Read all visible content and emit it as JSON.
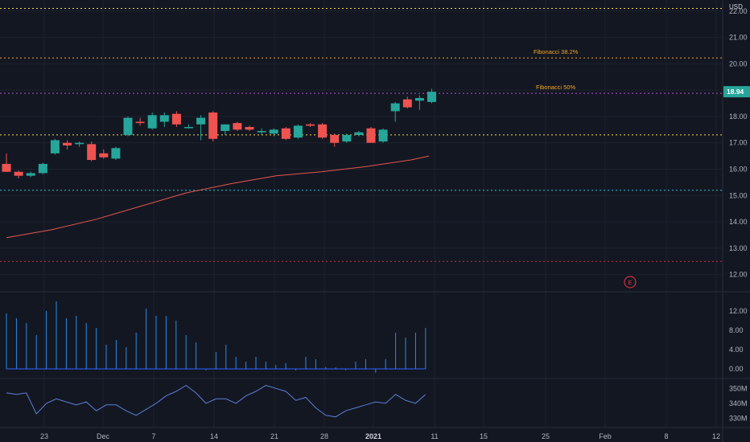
{
  "chart_data": [
    {
      "type": "candlestick",
      "currency": "USD",
      "ylim": [
        11.5,
        22.3
      ],
      "y_ticks": [
        "22.00",
        "21.00",
        "20.00",
        "19.00",
        "18.00",
        "17.00",
        "16.00",
        "15.00",
        "14.00",
        "13.00",
        "12.00"
      ],
      "last_price": "18.94",
      "x_ticks": [
        "23",
        "Dec",
        "7",
        "14",
        "21",
        "28",
        "2021",
        "11",
        "15",
        "25",
        "Feb",
        "8",
        "12"
      ],
      "candles": [
        {
          "o": 16.2,
          "h": 16.6,
          "l": 15.9,
          "c": 15.9
        },
        {
          "o": 15.9,
          "h": 15.95,
          "l": 15.65,
          "c": 15.75
        },
        {
          "o": 15.75,
          "h": 15.9,
          "l": 15.7,
          "c": 15.85
        },
        {
          "o": 15.85,
          "h": 16.25,
          "l": 15.8,
          "c": 16.2
        },
        {
          "o": 16.6,
          "h": 17.15,
          "l": 16.55,
          "c": 17.1
        },
        {
          "o": 17.0,
          "h": 17.1,
          "l": 16.75,
          "c": 16.9
        },
        {
          "o": 16.95,
          "h": 17.05,
          "l": 16.85,
          "c": 17.0
        },
        {
          "o": 16.95,
          "h": 17.05,
          "l": 16.3,
          "c": 16.35
        },
        {
          "o": 16.6,
          "h": 16.75,
          "l": 16.4,
          "c": 16.45
        },
        {
          "o": 16.4,
          "h": 16.85,
          "l": 16.35,
          "c": 16.8
        },
        {
          "o": 17.3,
          "h": 18.0,
          "l": 17.25,
          "c": 17.95
        },
        {
          "o": 17.8,
          "h": 17.95,
          "l": 17.65,
          "c": 17.75
        },
        {
          "o": 17.55,
          "h": 18.15,
          "l": 17.5,
          "c": 18.05
        },
        {
          "o": 17.8,
          "h": 18.15,
          "l": 17.6,
          "c": 18.05
        },
        {
          "o": 18.1,
          "h": 18.2,
          "l": 17.6,
          "c": 17.7
        },
        {
          "o": 17.6,
          "h": 17.7,
          "l": 17.55,
          "c": 17.6
        },
        {
          "o": 17.7,
          "h": 18.05,
          "l": 17.1,
          "c": 17.95
        },
        {
          "o": 18.15,
          "h": 18.2,
          "l": 17.05,
          "c": 17.15
        },
        {
          "o": 17.45,
          "h": 17.7,
          "l": 17.3,
          "c": 17.7
        },
        {
          "o": 17.75,
          "h": 17.8,
          "l": 17.45,
          "c": 17.5
        },
        {
          "o": 17.6,
          "h": 17.65,
          "l": 17.45,
          "c": 17.5
        },
        {
          "o": 17.4,
          "h": 17.55,
          "l": 17.3,
          "c": 17.45
        },
        {
          "o": 17.35,
          "h": 17.55,
          "l": 17.25,
          "c": 17.5
        },
        {
          "o": 17.55,
          "h": 17.6,
          "l": 17.1,
          "c": 17.15
        },
        {
          "o": 17.2,
          "h": 17.7,
          "l": 17.15,
          "c": 17.65
        },
        {
          "o": 17.7,
          "h": 17.75,
          "l": 17.6,
          "c": 17.65
        },
        {
          "o": 17.7,
          "h": 17.75,
          "l": 17.15,
          "c": 17.2
        },
        {
          "o": 17.3,
          "h": 17.35,
          "l": 16.85,
          "c": 17.0
        },
        {
          "o": 17.05,
          "h": 17.35,
          "l": 17.0,
          "c": 17.3
        },
        {
          "o": 17.3,
          "h": 17.45,
          "l": 17.25,
          "c": 17.4
        },
        {
          "o": 17.55,
          "h": 17.6,
          "l": 17.0,
          "c": 17.0
        },
        {
          "o": 17.05,
          "h": 17.55,
          "l": 17.0,
          "c": 17.5
        },
        {
          "o": 18.2,
          "h": 18.55,
          "l": 17.8,
          "c": 18.5
        },
        {
          "o": 18.65,
          "h": 18.75,
          "l": 18.3,
          "c": 18.35
        },
        {
          "o": 18.6,
          "h": 18.8,
          "l": 18.25,
          "c": 18.7
        },
        {
          "o": 18.55,
          "h": 19.05,
          "l": 18.5,
          "c": 18.94
        }
      ],
      "moving_average": [
        {
          "x": 0,
          "y": 13.4
        },
        {
          "x": 5,
          "y": 13.7
        },
        {
          "x": 10,
          "y": 14.1
        },
        {
          "x": 15,
          "y": 14.6
        },
        {
          "x": 20,
          "y": 15.1
        },
        {
          "x": 25,
          "y": 15.45
        },
        {
          "x": 30,
          "y": 15.75
        },
        {
          "x": 35,
          "y": 15.9
        },
        {
          "x": 40,
          "y": 16.1
        },
        {
          "x": 45,
          "y": 16.35
        },
        {
          "x": 47,
          "y": 16.5
        }
      ],
      "horizontal_levels": [
        {
          "y": 22.1,
          "color": "#f5d742"
        },
        {
          "y": 20.22,
          "color": "#f5a623",
          "label": "Fibonacci 38.2%"
        },
        {
          "y": 18.88,
          "color": "#b84fd8",
          "label": "Fibonacci 50%"
        },
        {
          "y": 17.3,
          "color": "#f5d742"
        },
        {
          "y": 15.2,
          "color": "#26c6da"
        },
        {
          "y": 12.5,
          "color": "#c62f45"
        }
      ],
      "earnings_marker": "E",
      "grid": true
    },
    {
      "type": "bar",
      "y_ticks": [
        "12.00",
        "8.00",
        "4.00",
        "0.00"
      ],
      "ylim": [
        -1.5,
        14.5
      ],
      "values": [
        11.5,
        10.5,
        9.5,
        7.0,
        12.0,
        14.0,
        10.5,
        11.0,
        9.5,
        8.5,
        5.0,
        6.0,
        4.5,
        7.5,
        12.5,
        11.0,
        11.0,
        10.0,
        7.0,
        5.5,
        -0.3,
        3.5,
        5.0,
        2.5,
        1.5,
        2.5,
        1.5,
        0.8,
        1.2,
        -0.3,
        2.5,
        2.0,
        0.4,
        0.3,
        -0.3,
        1.5,
        2.0,
        -0.8,
        2.0,
        7.5,
        6.5,
        7.5,
        8.5
      ]
    },
    {
      "type": "line",
      "y_ticks": [
        "350M",
        "340M",
        "330M"
      ],
      "ylim": [
        326,
        355
      ],
      "values": [
        347,
        346,
        347,
        333,
        340,
        343,
        341,
        339,
        341,
        335,
        339,
        339,
        335,
        332,
        336,
        340,
        345,
        348,
        352,
        347,
        340,
        343,
        343,
        340,
        345,
        348,
        352,
        350,
        348,
        342,
        344,
        337,
        332,
        331,
        335,
        337,
        339,
        341,
        340,
        346,
        342,
        340,
        346
      ]
    }
  ]
}
